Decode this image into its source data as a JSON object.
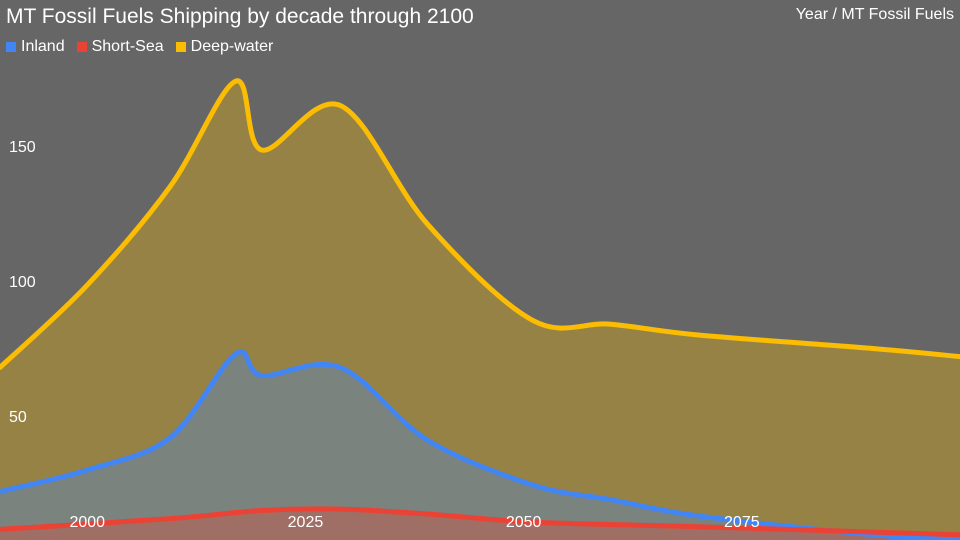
{
  "chart_data": {
    "type": "area",
    "title": "MT Fossil Fuels Shipping by decade through 2100",
    "axis_title": "Year / MT Fossil Fuels",
    "xlim": [
      1990,
      2100
    ],
    "ylim": [
      0,
      200
    ],
    "x_ticks": [
      2000,
      2025,
      2050,
      2075
    ],
    "y_ticks": [
      50,
      100,
      150
    ],
    "legend_position": "top-left",
    "series": [
      {
        "name": "Deep-water",
        "color": "#FBBC04",
        "x": [
          1990,
          2000,
          2009.5,
          2017,
          2020,
          2029,
          2039,
          2051,
          2060,
          2070,
          2090,
          2100
        ],
        "values": [
          68,
          98.5,
          135,
          174,
          148.5,
          165,
          121,
          85.5,
          84,
          80,
          75,
          72
        ]
      },
      {
        "name": "Inland",
        "color": "#4285F4",
        "x": [
          1990,
          2000,
          2009.5,
          2017,
          2020,
          2029,
          2039,
          2051,
          2060,
          2070,
          2090,
          2100
        ],
        "values": [
          22,
          30,
          42,
          73,
          65,
          68,
          41,
          24.5,
          19,
          13,
          6,
          4
        ]
      },
      {
        "name": "Short-Sea",
        "color": "#EA4335",
        "x": [
          1990,
          2009.5,
          2020,
          2029,
          2039,
          2051,
          2070,
          2100
        ],
        "values": [
          8,
          12,
          15,
          15.5,
          13.7,
          10.7,
          9,
          6
        ]
      }
    ],
    "legend": [
      "Inland",
      "Short-Sea",
      "Deep-water"
    ]
  }
}
